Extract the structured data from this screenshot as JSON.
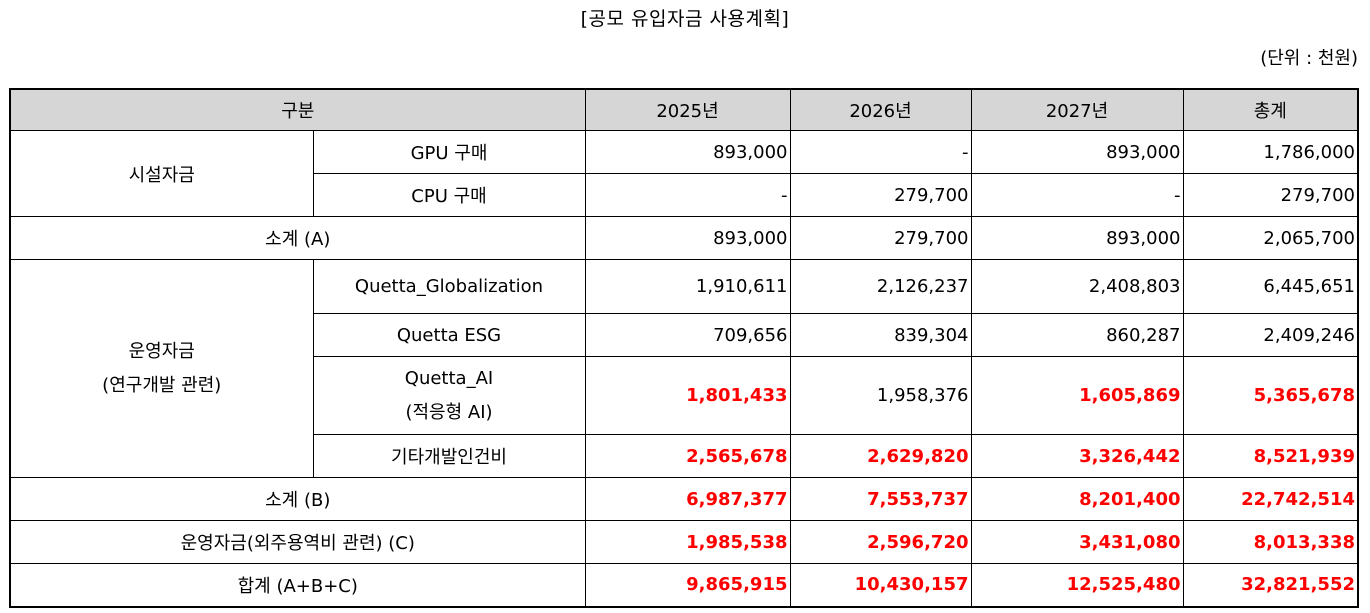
{
  "title": "[공모 유입자금 사용계획]",
  "unit": "(단위 : 천원)",
  "header": {
    "category": "구분",
    "y2025": "2025년",
    "y2026": "2026년",
    "y2027": "2027년",
    "total": "총계"
  },
  "facility": {
    "label": "시설자금",
    "rows": [
      {
        "item": "GPU 구매",
        "y2025": "893,000",
        "y2026": "-",
        "y2027": "893,000",
        "total": "1,786,000"
      },
      {
        "item": "CPU 구매",
        "y2025": "-",
        "y2026": "279,700",
        "y2027": "-",
        "total": "279,700"
      }
    ]
  },
  "subtotal_a": {
    "label": "소계 (A)",
    "y2025": "893,000",
    "y2026": "279,700",
    "y2027": "893,000",
    "total": "2,065,700"
  },
  "operating": {
    "label_line1": "운영자금",
    "label_line2": "(연구개발 관련)",
    "rows": [
      {
        "item": "Quetta_Globalization",
        "y2025": "1,910,611",
        "y2026": "2,126,237",
        "y2027": "2,408,803",
        "total": "6,445,651"
      },
      {
        "item": "Quetta ESG",
        "y2025": "709,656",
        "y2026": "839,304",
        "y2027": "860,287",
        "total": "2,409,246"
      },
      {
        "item_line1": "Quetta_AI",
        "item_line2": "(적응형 AI)",
        "y2025": "1,801,433",
        "y2026": "1,958,376",
        "y2027": "1,605,869",
        "total": "5,365,678"
      },
      {
        "item": "기타개발인건비",
        "y2025": "2,565,678",
        "y2026": "2,629,820",
        "y2027": "3,326,442",
        "total": "8,521,939"
      }
    ]
  },
  "subtotal_b": {
    "label": "소계 (B)",
    "y2025": "6,987,377",
    "y2026": "7,553,737",
    "y2027": "8,201,400",
    "total": "22,742,514"
  },
  "outsourcing": {
    "label": "운영자금(외주용역비 관련) (C)",
    "y2025": "1,985,538",
    "y2026": "2,596,720",
    "y2027": "3,431,080",
    "total": "8,013,338"
  },
  "grand_total": {
    "label": "합계 (A+B+C)",
    "y2025": "9,865,915",
    "y2026": "10,430,157",
    "y2027": "12,525,480",
    "total": "32,821,552"
  },
  "colors": {
    "header_bg": "#d6d6d6",
    "highlight": "#ff0000"
  }
}
